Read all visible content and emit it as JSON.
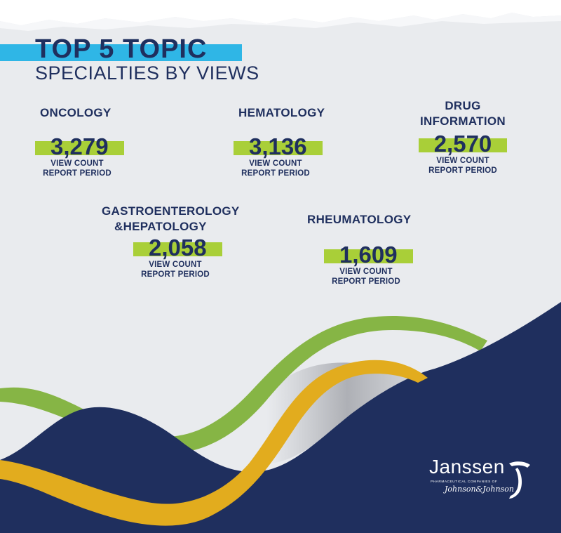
{
  "header": {
    "title": "TOP 5 TOPIC",
    "subtitle": "SPECIALTIES BY VIEWS"
  },
  "specialties": [
    {
      "name_line1": "ONCOLOGY",
      "name_line2": "",
      "value": "3,279",
      "caption_line1": "VIEW COUNT",
      "caption_line2": "REPORT PERIOD"
    },
    {
      "name_line1": "HEMATOLOGY",
      "name_line2": "",
      "value": "3,136",
      "caption_line1": "VIEW COUNT",
      "caption_line2": "REPORT PERIOD"
    },
    {
      "name_line1": "DRUG",
      "name_line2": "INFORMATION",
      "value": "2,570",
      "caption_line1": "VIEW COUNT",
      "caption_line2": "REPORT PERIOD"
    },
    {
      "name_line1": "GASTROENTEROLOGY",
      "name_line2": "&HEPATOLOGY",
      "value": "2,058",
      "caption_line1": "VIEW COUNT",
      "caption_line2": "REPORT PERIOD"
    },
    {
      "name_line1": "RHEUMATOLOGY",
      "name_line2": "",
      "value": "1,609",
      "caption_line1": "VIEW COUNT",
      "caption_line2": "REPORT PERIOD"
    }
  ],
  "logo": {
    "brand": "Janssen",
    "tagline": "PHARMACEUTICAL COMPANIES OF",
    "parent": "Johnson&Johnson"
  },
  "colors": {
    "background": "#e9ebee",
    "navy": "#1f2f5e",
    "title_bar": "#2fb6e6",
    "value_highlight": "#a9cf38",
    "wave_green": "#86b545",
    "wave_yellow": "#e2ac1e",
    "top_texture": "#ffffff"
  }
}
